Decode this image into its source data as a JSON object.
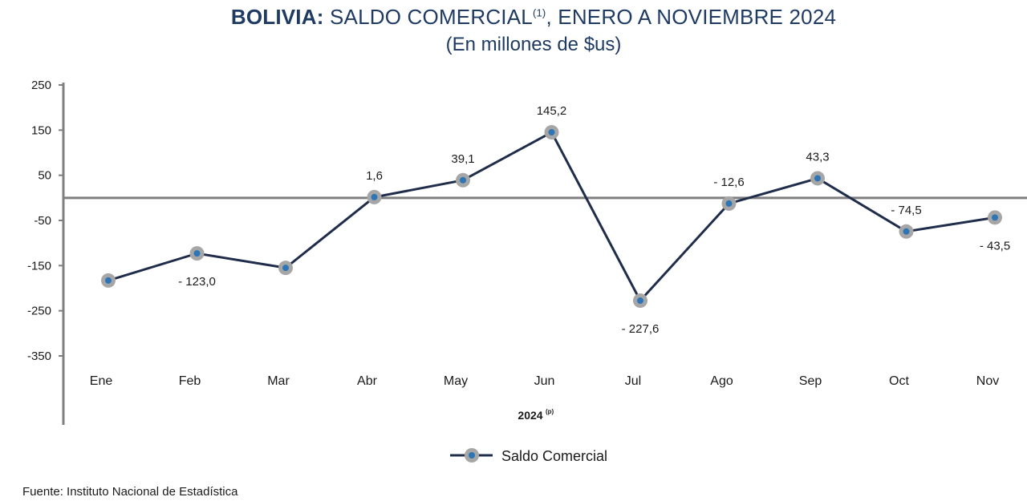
{
  "header": {
    "title_bold": "BOLIVIA:",
    "title_rest": " SALDO COMERCIAL",
    "title_sup": "(1)",
    "title_end": ", ENERO A NOVIEMBRE 2024",
    "subtitle": "(En millones de $us)"
  },
  "chart_data": {
    "type": "line",
    "title": "BOLIVIA: SALDO COMERCIAL(1), ENERO A NOVIEMBRE 2024",
    "subtitle": "(En millones de $us)",
    "xlabel": "2024",
    "xlabel_sup": "(p)",
    "ylabel": "",
    "categories": [
      "Ene",
      "Feb",
      "Mar",
      "Abr",
      "May",
      "Jun",
      "Jul",
      "Ago",
      "Sep",
      "Oct",
      "Nov"
    ],
    "yticks": [
      250,
      150,
      50,
      -50,
      -150,
      -250,
      -350
    ],
    "ytick_labels": [
      "250",
      "150",
      "50",
      "-50",
      "-150",
      "-250",
      "-350"
    ],
    "ylim": [
      -350,
      250
    ],
    "series": [
      {
        "name": "Saldo Comercial",
        "values": [
          -183.0,
          -123.0,
          -155.0,
          1.6,
          39.1,
          145.2,
          -227.6,
          -12.6,
          43.3,
          -74.5,
          -43.5
        ],
        "labels": [
          "",
          "- 123,0",
          "",
          "1,6",
          "39,1",
          "145,2",
          "- 227,6",
          "- 12,6",
          "43,3",
          "- 74,5",
          "- 43,5"
        ],
        "label_positions": [
          "",
          "below",
          "",
          "above",
          "above",
          "above",
          "below",
          "above",
          "above",
          "above",
          "below"
        ]
      }
    ],
    "zero_line": true,
    "grid": false,
    "legend_position": "bottom-center",
    "colors": {
      "line": "#1f2d4a",
      "marker_outer": "#a6a6a6",
      "marker_inner": "#2e75b6",
      "axis": "#7f7f7f"
    }
  },
  "footer": {
    "source": "Fuente: Instituto Nacional de Estadística"
  }
}
